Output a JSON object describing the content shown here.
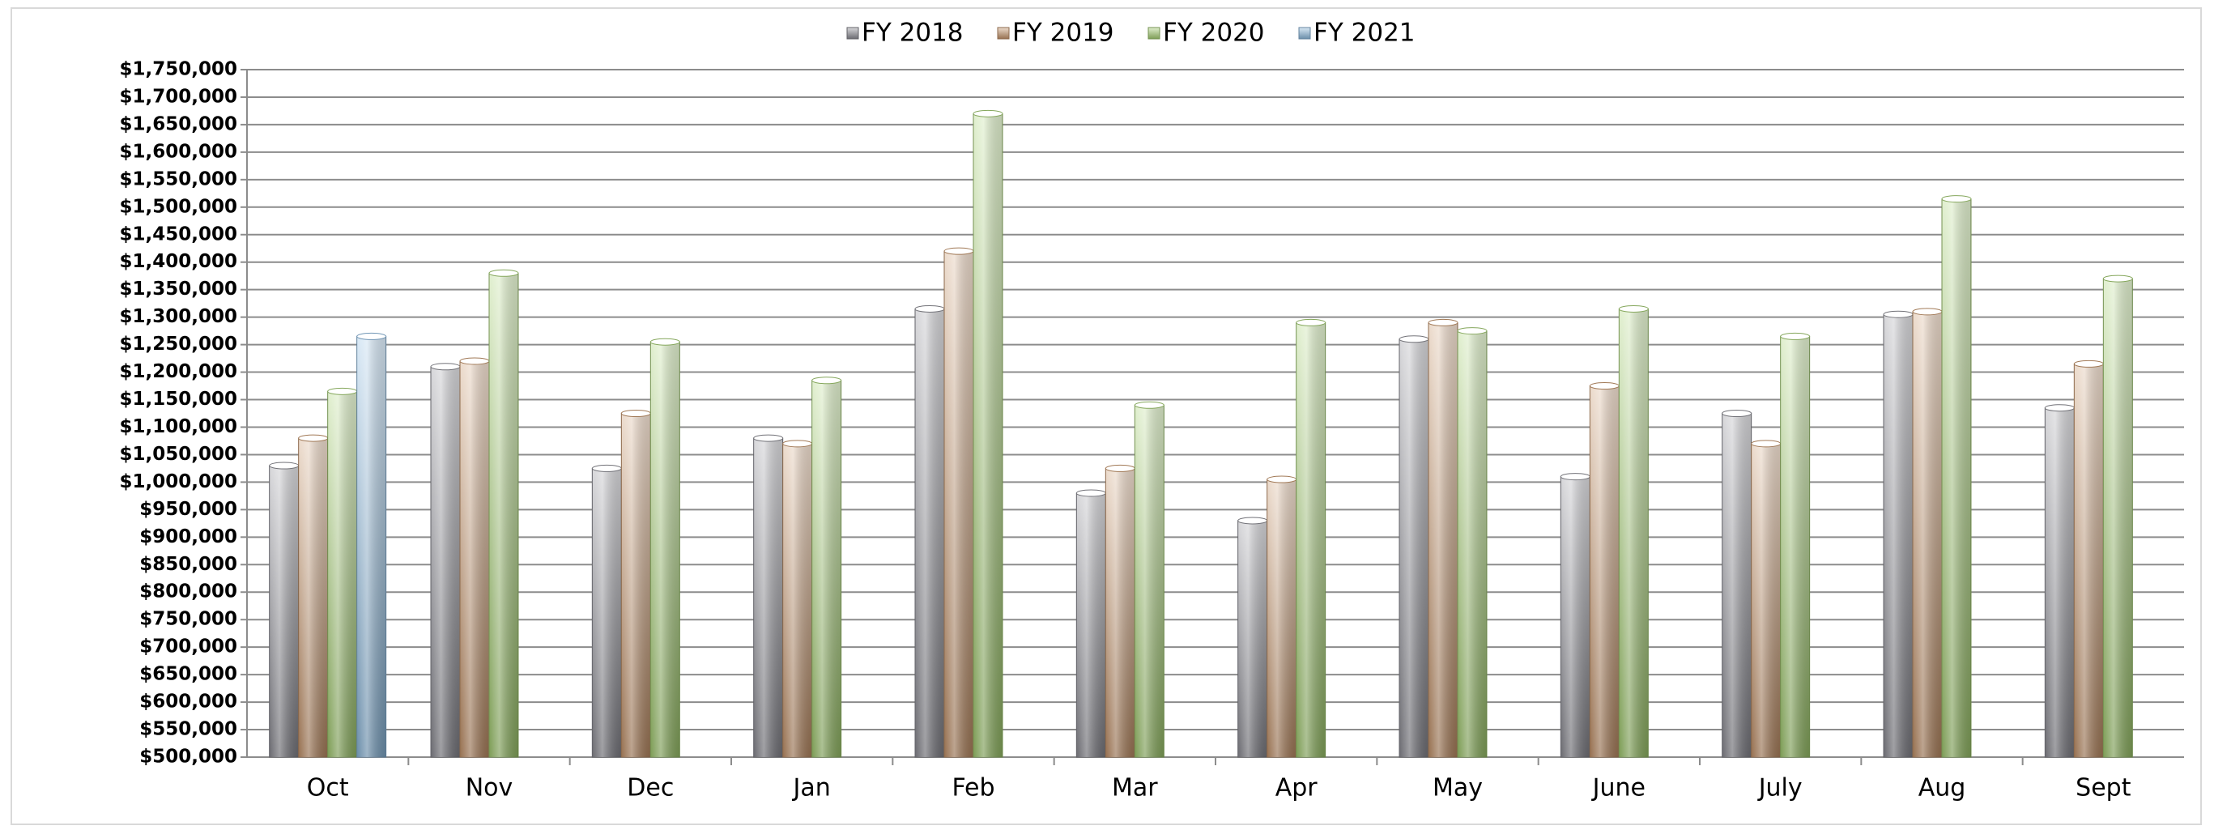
{
  "chart_data": {
    "type": "bar",
    "categories": [
      "Oct",
      "Nov",
      "Dec",
      "Jan",
      "Feb",
      "Mar",
      "Apr",
      "May",
      "June",
      "July",
      "Aug",
      "Sept"
    ],
    "series": [
      {
        "name": "FY 2018",
        "color": "#8e8e96",
        "values": [
          1030000,
          1210000,
          1025000,
          1080000,
          1315000,
          980000,
          930000,
          1260000,
          1010000,
          1125000,
          1305000,
          1135000
        ]
      },
      {
        "name": "FY 2019",
        "color": "#c9976c",
        "values": [
          1080000,
          1220000,
          1125000,
          1070000,
          1420000,
          1025000,
          1005000,
          1290000,
          1175000,
          1070000,
          1310000,
          1215000
        ]
      },
      {
        "name": "FY 2020",
        "color": "#a6d173",
        "values": [
          1165000,
          1380000,
          1255000,
          1185000,
          1670000,
          1140000,
          1290000,
          1275000,
          1315000,
          1265000,
          1515000,
          1370000
        ]
      },
      {
        "name": "FY 2021",
        "color": "#8fbde3",
        "values": [
          1265000,
          null,
          null,
          null,
          null,
          null,
          null,
          null,
          null,
          null,
          null,
          null
        ]
      }
    ],
    "ylim": [
      500000,
      1750000
    ],
    "yticks": [
      {
        "value": 500000,
        "label": "$500,000"
      },
      {
        "value": 550000,
        "label": "$550,000"
      },
      {
        "value": 600000,
        "label": "$600,000"
      },
      {
        "value": 650000,
        "label": "$650,000"
      },
      {
        "value": 700000,
        "label": "$700,000"
      },
      {
        "value": 750000,
        "label": "$750,000"
      },
      {
        "value": 800000,
        "label": "$800,000"
      },
      {
        "value": 850000,
        "label": "$850,000"
      },
      {
        "value": 900000,
        "label": "$900,000"
      },
      {
        "value": 950000,
        "label": "$950,000"
      },
      {
        "value": 1000000,
        "label": "$1,000,000"
      },
      {
        "value": 1050000,
        "label": "$1,050,000"
      },
      {
        "value": 1100000,
        "label": "$1,100,000"
      },
      {
        "value": 1150000,
        "label": "$1,150,000"
      },
      {
        "value": 1200000,
        "label": "$1,200,000"
      },
      {
        "value": 1250000,
        "label": "$1,250,000"
      },
      {
        "value": 1300000,
        "label": "$1,300,000"
      },
      {
        "value": 1350000,
        "label": "$1,350,000"
      },
      {
        "value": 1400000,
        "label": "$1,400,000"
      },
      {
        "value": 1450000,
        "label": "$1,450,000"
      },
      {
        "value": 1500000,
        "label": "$1,500,000"
      },
      {
        "value": 1550000,
        "label": "$1,550,000"
      },
      {
        "value": 1600000,
        "label": "$1,600,000"
      },
      {
        "value": 1650000,
        "label": "$1,650,000"
      },
      {
        "value": 1700000,
        "label": "$1,700,000"
      },
      {
        "value": 1750000,
        "label": "$1,750,000"
      }
    ],
    "grid": true,
    "legend": "top"
  }
}
